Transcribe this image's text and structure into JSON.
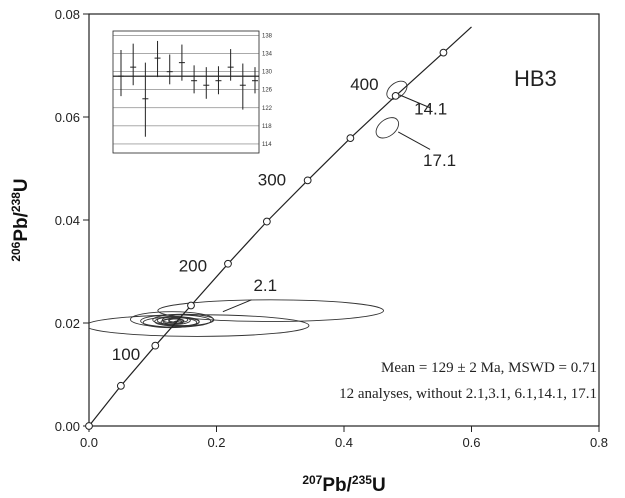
{
  "chart_data": {
    "type": "scatter",
    "xlabel": {
      "sup": "207",
      "main": "Pb/",
      "sup2": "235",
      "tail": "U"
    },
    "ylabel": {
      "sup": "206",
      "main": "Pb/",
      "sup2": "238",
      "tail": "U"
    },
    "xlim": [
      0,
      0.8
    ],
    "ylim": [
      0,
      0.08
    ],
    "x_ticks": [
      {
        "value": 0,
        "label": "0.0"
      },
      {
        "value": 0.2,
        "label": "0.2"
      },
      {
        "value": 0.4,
        "label": "0.4"
      },
      {
        "value": 0.6,
        "label": "0.6"
      },
      {
        "value": 0.8,
        "label": "0.8"
      }
    ],
    "y_ticks": [
      {
        "value": 0,
        "label": "0.00"
      },
      {
        "value": 0.02,
        "label": "0.02"
      },
      {
        "value": 0.04,
        "label": "0.04"
      },
      {
        "value": 0.06,
        "label": "0.06"
      },
      {
        "value": 0.08,
        "label": "0.08"
      }
    ],
    "concordia": [
      [
        0,
        0
      ],
      [
        0.05,
        0.0078
      ],
      [
        0.104,
        0.0156
      ],
      [
        0.16,
        0.0234
      ],
      [
        0.218,
        0.0315
      ],
      [
        0.279,
        0.0397
      ],
      [
        0.343,
        0.0477
      ],
      [
        0.41,
        0.0559
      ],
      [
        0.481,
        0.0641
      ],
      [
        0.556,
        0.0725
      ],
      [
        0.6,
        0.0775
      ]
    ],
    "concordia_markers": [
      {
        "x": 0,
        "y": 0
      },
      {
        "x": 0.05,
        "y": 0.0078
      },
      {
        "x": 0.104,
        "y": 0.0156
      },
      {
        "x": 0.16,
        "y": 0.0234
      },
      {
        "x": 0.218,
        "y": 0.0315
      },
      {
        "x": 0.279,
        "y": 0.0397
      },
      {
        "x": 0.343,
        "y": 0.0477
      },
      {
        "x": 0.41,
        "y": 0.0559
      },
      {
        "x": 0.481,
        "y": 0.0641
      },
      {
        "x": 0.556,
        "y": 0.0725
      }
    ],
    "age_labels": [
      {
        "text": "100",
        "x": 0.058,
        "y": 0.0128
      },
      {
        "text": "200",
        "x": 0.163,
        "y": 0.03
      },
      {
        "text": "300",
        "x": 0.287,
        "y": 0.0467
      },
      {
        "text": "400",
        "x": 0.432,
        "y": 0.0652
      }
    ],
    "ellipses": [
      {
        "cx": 0.285,
        "cy": 0.0224,
        "rx": 0.177,
        "ry": 0.0021,
        "angle": 0
      },
      {
        "cx": 0.17,
        "cy": 0.0195,
        "rx": 0.175,
        "ry": 0.0021,
        "angle": 0
      },
      {
        "cx": 0.13,
        "cy": 0.0207,
        "rx": 0.065,
        "ry": 0.0015,
        "angle": 0
      },
      {
        "cx": 0.136,
        "cy": 0.0204,
        "rx": 0.055,
        "ry": 0.0012,
        "angle": 0
      },
      {
        "cx": 0.148,
        "cy": 0.0206,
        "rx": 0.048,
        "ry": 0.0011,
        "angle": 0
      },
      {
        "cx": 0.127,
        "cy": 0.0201,
        "rx": 0.042,
        "ry": 0.001,
        "angle": 0
      },
      {
        "cx": 0.138,
        "cy": 0.0203,
        "rx": 0.035,
        "ry": 0.0009,
        "angle": 0
      },
      {
        "cx": 0.143,
        "cy": 0.0202,
        "rx": 0.03,
        "ry": 0.0008,
        "angle": 0
      },
      {
        "cx": 0.133,
        "cy": 0.0205,
        "rx": 0.026,
        "ry": 0.0008,
        "angle": 0
      },
      {
        "cx": 0.135,
        "cy": 0.0206,
        "rx": 0.02,
        "ry": 0.0006,
        "angle": 0
      },
      {
        "cx": 0.132,
        "cy": 0.0203,
        "rx": 0.016,
        "ry": 0.0005,
        "angle": 0
      },
      {
        "cx": 0.137,
        "cy": 0.0204,
        "rx": 0.012,
        "ry": 0.0004,
        "angle": 0
      },
      {
        "cx": 0.134,
        "cy": 0.0206,
        "rx": 0.009,
        "ry": 0.0004,
        "angle": 0
      },
      {
        "cx": 0.14,
        "cy": 0.0201,
        "rx": 0.007,
        "ry": 0.0003,
        "angle": 0
      },
      {
        "cx": 0.483,
        "cy": 0.0652,
        "rx": 0.018,
        "ry": 0.0014,
        "angle": 38
      },
      {
        "cx": 0.468,
        "cy": 0.0579,
        "rx": 0.02,
        "ry": 0.0016,
        "angle": 38
      }
    ],
    "annotations": [
      {
        "text": "2.1",
        "x": 0.258,
        "y": 0.0262,
        "lx1": 0.255,
        "ly1": 0.0245,
        "lx2": 0.21,
        "ly2": 0.0222
      },
      {
        "text": "14.1",
        "x": 0.51,
        "y": 0.0605,
        "lx1": 0.535,
        "ly1": 0.0618,
        "lx2": 0.487,
        "ly2": 0.0643
      },
      {
        "text": "17.1",
        "x": 0.524,
        "y": 0.0505,
        "lx1": 0.535,
        "ly1": 0.0537,
        "lx2": 0.485,
        "ly2": 0.0571
      }
    ],
    "sample_label": "HB3",
    "summary_line1": "Mean = 129 ± 2  Ma, MSWD = 0.71",
    "summary_line2": "12 analyses, without 2.1,3.1, 6.1,14.1, 17.1",
    "inset": {
      "yticks": [
        114,
        118,
        122,
        126,
        130,
        134,
        138
      ],
      "ylim": [
        112,
        139
      ],
      "mean": 129,
      "errbars": [
        {
          "value": 129,
          "low": 124.6,
          "high": 134.8
        },
        {
          "value": 131,
          "low": 127.0,
          "high": 136.2
        },
        {
          "value": 124,
          "low": 115.6,
          "high": 132.0
        },
        {
          "value": 133,
          "low": 128.8,
          "high": 136.8
        },
        {
          "value": 130,
          "low": 127.2,
          "high": 133.8
        },
        {
          "value": 132,
          "low": 128.0,
          "high": 136.0
        },
        {
          "value": 128,
          "low": 125.2,
          "high": 131.4
        },
        {
          "value": 127,
          "low": 124.0,
          "high": 131.0
        },
        {
          "value": 128,
          "low": 125.0,
          "high": 131.2
        },
        {
          "value": 131,
          "low": 128.0,
          "high": 135.0
        },
        {
          "value": 127,
          "low": 121.6,
          "high": 131.8
        },
        {
          "value": 128,
          "low": 125.2,
          "high": 131.0
        }
      ]
    }
  }
}
